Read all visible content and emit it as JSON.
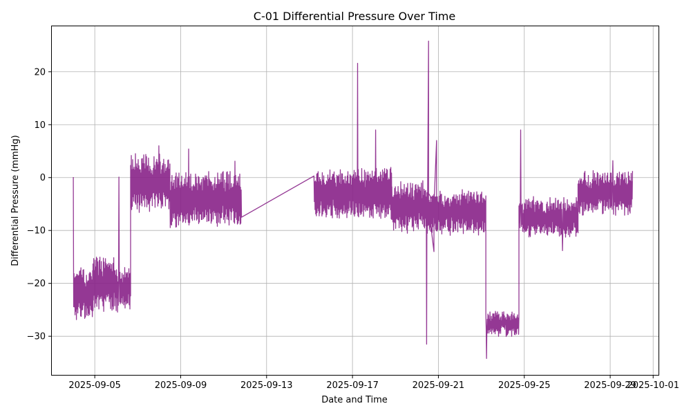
{
  "chart_data": {
    "type": "line",
    "title": "C-01 Differential Pressure Over Time",
    "xlabel": "Date and Time",
    "ylabel": "Differential Pressure (mmHg)",
    "xlim": [
      "2025-09-03T00:00",
      "2025-10-01T06:00"
    ],
    "ylim": [
      -37.3,
      28.6
    ],
    "x_ticks": [
      "2025-09-05",
      "2025-09-09",
      "2025-09-13",
      "2025-09-17",
      "2025-09-21",
      "2025-09-25",
      "2025-09-29",
      "2025-10-01"
    ],
    "y_ticks": [
      20,
      10,
      0,
      -10,
      -20,
      -30
    ],
    "grid": true,
    "series": [
      {
        "color": "#882288",
        "segments": [
          {
            "start": "2025-09-04T00:00",
            "end": "2025-09-04T22:00",
            "center": -22,
            "amplitude": 5,
            "seed": 11,
            "spikes": [
              {
                "at": "2025-09-04T00:00",
                "value": 0.1
              }
            ]
          },
          {
            "start": "2025-09-04T22:00",
            "end": "2025-09-05T22:00",
            "center": -20,
            "amplitude": 5,
            "seed": 12
          },
          {
            "start": "2025-09-05T22:00",
            "end": "2025-09-06T16:00",
            "center": -21,
            "amplitude": 4,
            "seed": 13,
            "spikes": [
              {
                "at": "2025-09-06T03:00",
                "value": 0.1
              }
            ]
          },
          {
            "start": "2025-09-06T16:00",
            "end": "2025-09-08T12:00",
            "center": -1,
            "amplitude": 5,
            "seed": 14,
            "spikes": [
              {
                "at": "2025-09-08T00:00",
                "value": 6
              }
            ]
          },
          {
            "start": "2025-09-08T12:00",
            "end": "2025-09-11T20:00",
            "center": -4,
            "amplitude": 5,
            "seed": 15,
            "spikes": [
              {
                "at": "2025-09-09T09:00",
                "value": 5.4
              },
              {
                "at": "2025-09-11T13:00",
                "value": 3.1
              }
            ]
          },
          {
            "start": "2025-09-15T05:00",
            "end": "2025-09-18T20:00",
            "center": -3,
            "amplitude": 4.5,
            "seed": 16,
            "spikes": [
              {
                "at": "2025-09-15T05:00",
                "value": 0.3
              },
              {
                "at": "2025-09-17T06:00",
                "value": 21.6
              },
              {
                "at": "2025-09-18T02:00",
                "value": 9
              }
            ]
          },
          {
            "start": "2025-09-18T20:00",
            "end": "2025-09-20T12:00",
            "center": -5.5,
            "amplitude": 4.5,
            "seed": 17,
            "spikes": [
              {
                "at": "2025-09-20T11:00",
                "value": -31.5
              },
              {
                "at": "2025-09-20T13:00",
                "value": 25.8
              },
              {
                "at": "2025-09-20T19:00",
                "value": -14
              },
              {
                "at": "2025-09-20T22:00",
                "value": 7
              }
            ]
          },
          {
            "start": "2025-09-20T12:00",
            "end": "2025-09-23T05:00",
            "center": -6.5,
            "amplitude": 4,
            "seed": 18
          },
          {
            "start": "2025-09-23T05:00",
            "end": "2025-09-24T18:00",
            "center": -27.5,
            "amplitude": 2,
            "seed": 19,
            "spikes": [
              {
                "at": "2025-09-23T06:00",
                "value": -34.2
              }
            ]
          },
          {
            "start": "2025-09-24T18:00",
            "end": "2025-09-27T12:00",
            "center": -7.5,
            "amplitude": 3.5,
            "seed": 20,
            "spikes": [
              {
                "at": "2025-09-24T20:00",
                "value": 9
              },
              {
                "at": "2025-09-26T19:00",
                "value": -13.8
              }
            ]
          },
          {
            "start": "2025-09-27T12:00",
            "end": "2025-09-30T01:00",
            "center": -3,
            "amplitude": 4,
            "seed": 21,
            "spikes": [
              {
                "at": "2025-09-29T03:00",
                "value": 3.2
              }
            ]
          }
        ]
      }
    ]
  }
}
